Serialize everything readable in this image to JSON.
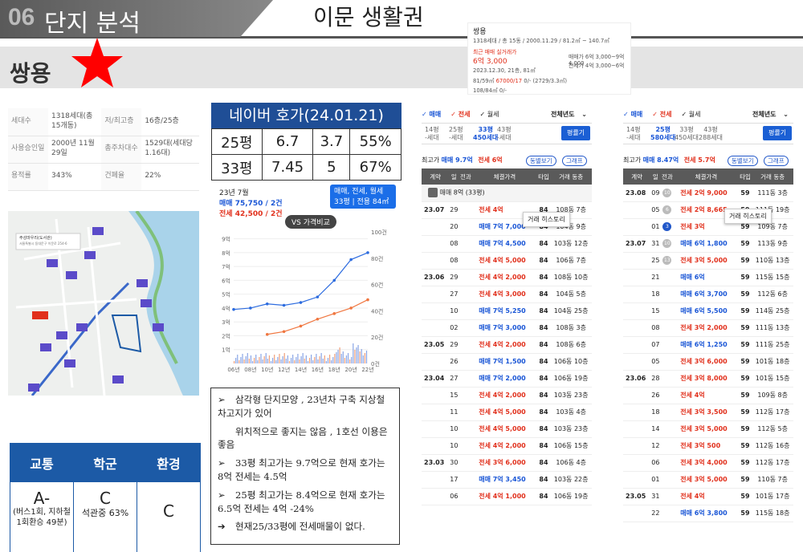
{
  "header": {
    "section_num": "06",
    "section_title": "단지 분석",
    "main_title": "이문 생활권"
  },
  "complex": {
    "name": "쌍용"
  },
  "info": [
    {
      "k1": "세대수",
      "v1": "1318세대(총15개동)",
      "k2": "저/최고층",
      "v2": "16층/25층"
    },
    {
      "k1": "사용승인일",
      "v1": "2000년 11월 29일",
      "k2": "총주차대수",
      "v2": "1529대(세대당 1.16대)"
    },
    {
      "k1": "용적률",
      "v1": "343%",
      "k2": "건폐율",
      "v2": "22%"
    }
  ],
  "map": {
    "label_title": "주성마우리(도서관)",
    "label_sub": "서울특별시 동대문구 이문로 254-6"
  },
  "scores": {
    "headers": [
      "교통",
      "학군",
      "환경"
    ],
    "grades": [
      "A-",
      "C",
      "C"
    ],
    "notes": [
      "(버스1회, 지하철1회환승 49분)",
      "석관중 63%",
      ""
    ]
  },
  "naver": {
    "title": "네이버 호가(24.01.21)",
    "rows": [
      [
        "25평",
        "6.7",
        "3.7",
        "55%"
      ],
      [
        "33평",
        "7.45",
        "5",
        "67%"
      ]
    ]
  },
  "chart": {
    "ym": "23년 7월",
    "sale": "매매 75,750 / 2건",
    "jeonse": "전세 42,500 / 2건",
    "selector_line1": "매매, 전세, 월세",
    "selector_line2": "33평 | 전용 84㎡",
    "vs": "VS 가격비교",
    "left_ticks": [
      "9억",
      "8억",
      "7억",
      "6억",
      "5억",
      "4억",
      "3억",
      "2억",
      "1억"
    ],
    "right_ticks": [
      "100건",
      "80건",
      "60건",
      "40건",
      "20건",
      "0건"
    ],
    "x_ticks": [
      "06년",
      "08년",
      "10년",
      "12년",
      "14년",
      "16년",
      "18년",
      "20년",
      "22년"
    ]
  },
  "chart_data": {
    "type": "line",
    "xlabel": "",
    "ylabel": "",
    "x": [
      "06년",
      "08년",
      "10년",
      "12년",
      "14년",
      "16년",
      "18년",
      "20년",
      "22년"
    ],
    "series": [
      {
        "name": "매매",
        "values": [
          3.9,
          4.0,
          4.3,
          4.2,
          4.4,
          4.8,
          6.0,
          7.5,
          8.0
        ]
      },
      {
        "name": "전세",
        "values": [
          null,
          null,
          2.1,
          2.3,
          2.7,
          3.2,
          3.6,
          4.0,
          4.6
        ]
      }
    ]
  },
  "notes": [
    {
      "mark": "➢",
      "text": "삼각형 단지모양 , 23년차 구축 지상철 차고지가 있어"
    },
    {
      "mark": "",
      "text": "위치적으로 좋지는 않음 , 1호선 이용은 좋음"
    },
    {
      "mark": "➢",
      "text": "33평 최고가는 9.7억으로 현재 호가는 8억 전세는 4.5억"
    },
    {
      "mark": "➢",
      "text": "25평 최고가는 8.4억으로 현재 호가는 6.5억 전세는 4억 -24%"
    },
    {
      "mark": "➔",
      "text": "현재25/33평에 전세매물이 없다."
    }
  ],
  "card": {
    "name": "쌍용",
    "meta": "1318세대 / 총 15동 / 2000.11.29 / 81.2㎡ ~ 140.7㎡",
    "recent": "최근 매매 실거래가",
    "price": "6억 3,000",
    "date": "2023.12.30, 21층, 81㎡",
    "area": "81/59㎡",
    "kv": "67000/17",
    "kv2": "0/- (2729/3.3㎡)",
    "area2": "108/84㎡",
    "kv3": "0/-",
    "sale": "매매가 6억 3,000~9억 4,000",
    "jeon": "전세가 4억 3,000~6억"
  },
  "panel1": {
    "tabs": [
      "매매",
      "전세",
      "월세"
    ],
    "right": "전체년도",
    "sizes": [
      {
        "t": "14평",
        "s": "-세대"
      },
      {
        "t": "25평",
        "s": "-세대"
      },
      {
        "t": "33평",
        "s": "450세대"
      },
      {
        "t": "43평",
        "s": "-세대"
      }
    ],
    "btn": "평률기",
    "max": "최고가",
    "maxs": "매매 9.7억",
    "maxj": "전세 6억",
    "b1": "동별보기",
    "b2": "그래프",
    "cols": [
      "계약",
      "일",
      "전과",
      "체결가격",
      "타입",
      "거래 동층"
    ],
    "owner": "매매 8억 (33평)",
    "tip": "거래 히스토리",
    "rows": [
      [
        "23.07",
        "29",
        "",
        "전세 4억",
        "84",
        "108동",
        "7층"
      ],
      [
        "",
        "20",
        "",
        "매매 7억 7,000",
        "84",
        "104동",
        "9층"
      ],
      [
        "",
        "08",
        "",
        "매매 7억 4,500",
        "84",
        "103동",
        "12층"
      ],
      [
        "",
        "08",
        "",
        "전세 4억 5,000",
        "84",
        "106동",
        "7층"
      ],
      [
        "23.06",
        "29",
        "",
        "전세 4억 2,000",
        "84",
        "108동",
        "10층"
      ],
      [
        "",
        "27",
        "",
        "전세 4억 3,000",
        "84",
        "104동",
        "5층"
      ],
      [
        "",
        "10",
        "",
        "매매 7억 5,250",
        "84",
        "104동",
        "25층"
      ],
      [
        "",
        "02",
        "",
        "매매 7억 3,000",
        "84",
        "108동",
        "3층"
      ],
      [
        "23.05",
        "29",
        "",
        "전세 4억 2,000",
        "84",
        "108동",
        "6층"
      ],
      [
        "",
        "26",
        "",
        "매매 7억 1,500",
        "84",
        "106동",
        "10층"
      ],
      [
        "23.04",
        "27",
        "",
        "매매 7억 2,000",
        "84",
        "106동",
        "19층"
      ],
      [
        "",
        "15",
        "",
        "전세 4억 2,000",
        "84",
        "103동",
        "23층"
      ],
      [
        "",
        "11",
        "",
        "전세 4억 5,000",
        "84",
        "103동",
        "4층"
      ],
      [
        "",
        "10",
        "",
        "전세 4억 5,000",
        "84",
        "103동",
        "23층"
      ],
      [
        "",
        "10",
        "",
        "전세 4억 2,000",
        "84",
        "106동",
        "15층"
      ],
      [
        "23.03",
        "30",
        "",
        "전세 3억 6,000",
        "84",
        "106동",
        "4층"
      ],
      [
        "",
        "17",
        "",
        "매매 7억 3,450",
        "84",
        "103동",
        "22층"
      ],
      [
        "",
        "06",
        "",
        "전세 4억 1,000",
        "84",
        "106동",
        "19층"
      ]
    ]
  },
  "panel2": {
    "tabs": [
      "매매",
      "전세",
      "월세"
    ],
    "right": "전체년도",
    "sizes": [
      {
        "t": "14평",
        "s": "-세대"
      },
      {
        "t": "25평",
        "s": "580세대"
      },
      {
        "t": "33평",
        "s": "450세대"
      },
      {
        "t": "43평",
        "s": "288세대"
      }
    ],
    "btn": "평률기",
    "max": "최고가",
    "maxs": "매매 8.47억",
    "maxj": "전세 5.7억",
    "b1": "동별보기",
    "b2": "그래프",
    "cols": [
      "계약",
      "일",
      "전과",
      "체결가격",
      "타입",
      "거래 동층"
    ],
    "tip": "거래 히스토리",
    "rows": [
      [
        "23.08",
        "09",
        "10",
        "전세 2억 9,000",
        "59",
        "111동",
        "3층"
      ],
      [
        "",
        "05",
        "6",
        "전세 2억 8,665",
        "59",
        "111동",
        "19층"
      ],
      [
        "",
        "01",
        "3",
        "전세 3억",
        "59",
        "109동",
        "7층"
      ],
      [
        "23.07",
        "31",
        "10",
        "매매 6억 1,800",
        "59",
        "113동",
        "9층"
      ],
      [
        "",
        "25",
        "13",
        "전세 3억 5,000",
        "59",
        "110동",
        "13층"
      ],
      [
        "",
        "21",
        "",
        "매매 6억",
        "59",
        "115동",
        "15층"
      ],
      [
        "",
        "18",
        "",
        "매매 6억 3,700",
        "59",
        "112동",
        "6층"
      ],
      [
        "",
        "15",
        "",
        "매매 6억 5,500",
        "59",
        "114동",
        "25층"
      ],
      [
        "",
        "08",
        "",
        "전세 3억 2,000",
        "59",
        "111동",
        "13층"
      ],
      [
        "",
        "07",
        "",
        "매매 6억 1,250",
        "59",
        "111동",
        "25층"
      ],
      [
        "",
        "05",
        "",
        "전세 3억 6,000",
        "59",
        "101동",
        "18층"
      ],
      [
        "23.06",
        "28",
        "",
        "전세 3억 8,000",
        "59",
        "101동",
        "15층"
      ],
      [
        "",
        "26",
        "",
        "전세 4억",
        "59",
        "109동",
        "8층"
      ],
      [
        "",
        "18",
        "",
        "전세 3억 3,500",
        "59",
        "112동",
        "17층"
      ],
      [
        "",
        "14",
        "",
        "전세 3억 5,000",
        "59",
        "112동",
        "5층"
      ],
      [
        "",
        "12",
        "",
        "전세 3억 500",
        "59",
        "112동",
        "16층"
      ],
      [
        "",
        "06",
        "",
        "전세 3억 4,000",
        "59",
        "112동",
        "17층"
      ],
      [
        "",
        "01",
        "",
        "전세 3억 5,000",
        "59",
        "110동",
        "7층"
      ],
      [
        "23.05",
        "31",
        "",
        "전세 4억",
        "59",
        "101동",
        "17층"
      ],
      [
        "",
        "22",
        "",
        "매매 6억 3,800",
        "59",
        "115동",
        "18층"
      ]
    ]
  }
}
